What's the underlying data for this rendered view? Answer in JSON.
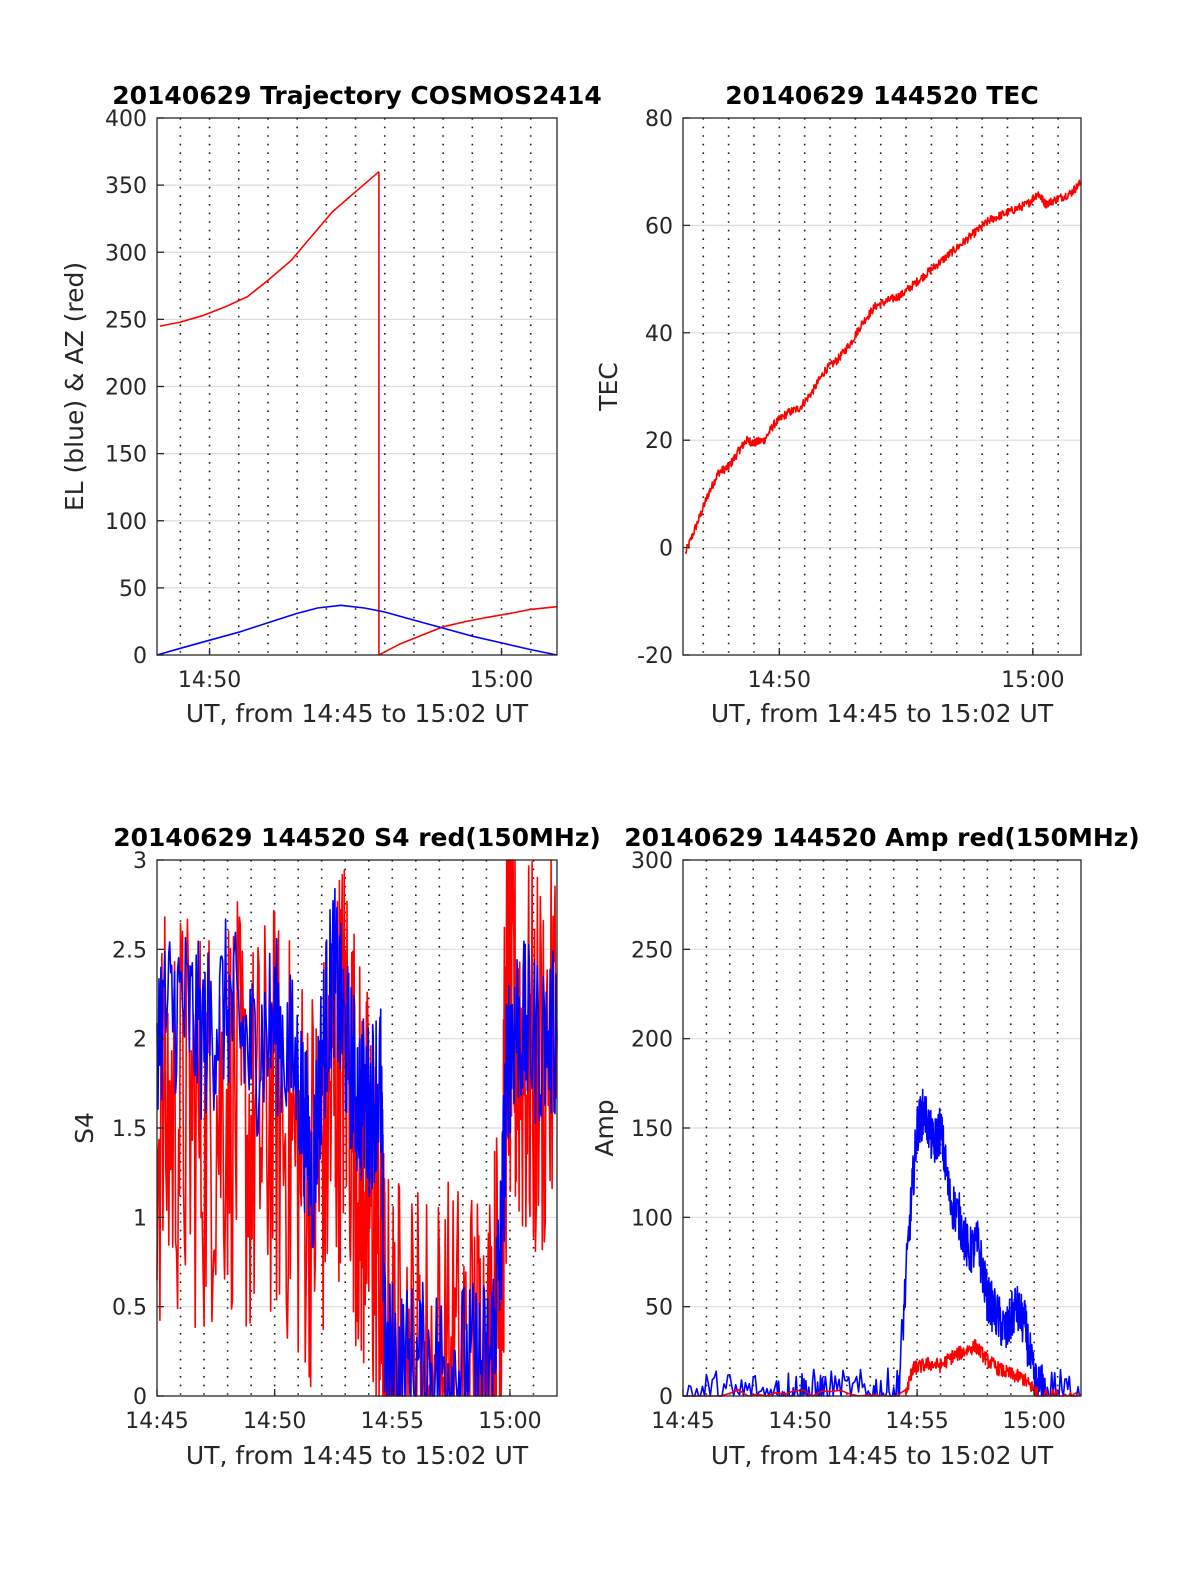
{
  "chart_data": [
    {
      "type": "line",
      "title": "20140629 Trajectory COSMOS2414",
      "xlabel": "UT, from 14:45 to 15:02 UT",
      "ylabel": "EL (blue) & AZ (red)",
      "xlim": [
        48.2,
        61.9
      ],
      "ylim": [
        0,
        400
      ],
      "xticks": [
        {
          "v": 50,
          "label": "14:50"
        },
        {
          "v": 60,
          "label": "15:00"
        }
      ],
      "yticks": [
        {
          "v": 0,
          "label": "0"
        },
        {
          "v": 50,
          "label": "50"
        },
        {
          "v": 100,
          "label": "100"
        },
        {
          "v": 150,
          "label": "150"
        },
        {
          "v": 200,
          "label": "200"
        },
        {
          "v": 250,
          "label": "250"
        },
        {
          "v": 300,
          "label": "300"
        },
        {
          "v": 350,
          "label": "350"
        },
        {
          "v": 400,
          "label": "400"
        }
      ],
      "minute_grid": true,
      "series": [
        {
          "color": "#ff0000",
          "x": [
            48.3,
            49.0,
            49.8,
            50.5,
            51.3,
            52.0,
            52.8,
            53.5,
            54.2,
            55.0,
            55.8
          ],
          "y": [
            245,
            248,
            253,
            259,
            267,
            279,
            294,
            312,
            330,
            345,
            360
          ]
        },
        {
          "color": "#ff0000",
          "x": [
            55.8,
            55.8
          ],
          "y": [
            360,
            0
          ]
        },
        {
          "color": "#ff0000",
          "x": [
            55.8,
            56.5,
            57.3,
            58.0,
            58.8,
            59.5,
            60.3,
            61.0,
            61.9
          ],
          "y": [
            0,
            8,
            15,
            21,
            25,
            28,
            31,
            34,
            36
          ]
        },
        {
          "color": "#0000ff",
          "x": [
            48.2,
            49.0,
            50.0,
            51.0,
            52.0,
            53.0,
            53.7,
            54.5,
            55.3,
            56.0,
            57.0,
            58.0,
            59.0,
            60.0,
            61.0,
            61.9
          ],
          "y": [
            0,
            5,
            11,
            17,
            24,
            31,
            35,
            37,
            35,
            32,
            26,
            20,
            14,
            9,
            4,
            0
          ]
        }
      ]
    },
    {
      "type": "line",
      "title": "20140629 144520 TEC",
      "xlabel": "UT, from 14:45 to 15:02 UT",
      "ylabel": "TEC",
      "xlim": [
        46.2,
        61.9
      ],
      "ylim": [
        -20,
        80
      ],
      "xticks": [
        {
          "v": 50,
          "label": "14:50"
        },
        {
          "v": 60,
          "label": "15:00"
        }
      ],
      "yticks": [
        {
          "v": -20,
          "label": "-20"
        },
        {
          "v": 0,
          "label": "0"
        },
        {
          "v": 20,
          "label": "20"
        },
        {
          "v": 40,
          "label": "40"
        },
        {
          "v": 60,
          "label": "60"
        },
        {
          "v": 80,
          "label": "80"
        }
      ],
      "minute_grid": true,
      "series": [
        {
          "color": "#ff0000",
          "noise": 0.8,
          "x": [
            46.3,
            46.8,
            47.2,
            47.6,
            48.0,
            48.4,
            48.7,
            49.0,
            49.4,
            49.8,
            50.3,
            50.8,
            51.3,
            51.8,
            52.3,
            52.8,
            53.3,
            53.8,
            54.3,
            54.8,
            55.3,
            55.8,
            56.3,
            56.8,
            57.3,
            57.8,
            58.3,
            58.8,
            59.3,
            59.8,
            60.2,
            60.5,
            61.0,
            61.5,
            61.9
          ],
          "y": [
            -1,
            5,
            10,
            14,
            15,
            18,
            20,
            19.5,
            20,
            23,
            25,
            26,
            29,
            33,
            35,
            38,
            42,
            45,
            46,
            47,
            49,
            51,
            53,
            55,
            57,
            59,
            61,
            62,
            63,
            64,
            66,
            64,
            65,
            66,
            68
          ]
        }
      ]
    },
    {
      "type": "line",
      "title": "20140629 144520 S4 red(150MHz)",
      "xlabel": "UT, from 14:45 to 15:02 UT",
      "ylabel": "S4",
      "xlim": [
        45,
        62
      ],
      "ylim": [
        0,
        3
      ],
      "xticks": [
        {
          "v": 45,
          "label": "14:45"
        },
        {
          "v": 50,
          "label": "14:50"
        },
        {
          "v": 55,
          "label": "14:55"
        },
        {
          "v": 60,
          "label": "15:00"
        }
      ],
      "yticks": [
        {
          "v": 0,
          "label": "0"
        },
        {
          "v": 0.5,
          "label": "0.5"
        },
        {
          "v": 1,
          "label": "1"
        },
        {
          "v": 1.5,
          "label": "1.5"
        },
        {
          "v": 2,
          "label": "2"
        },
        {
          "v": 2.5,
          "label": "2.5"
        },
        {
          "v": 3,
          "label": "3"
        }
      ],
      "minute_grid": true,
      "series": [
        {
          "color": "#ff0000",
          "noise": 1.2,
          "x": [
            45.0,
            46.0,
            47.0,
            48.0,
            49.0,
            50.0,
            51.0,
            51.8,
            52.5,
            53.0,
            53.6,
            54.0,
            54.5,
            54.7,
            55.5,
            56.5,
            57.5,
            58.5,
            59.2,
            59.6,
            59.9,
            60.3,
            61.0,
            62.0
          ],
          "y": [
            1.5,
            1.6,
            1.5,
            1.7,
            1.4,
            1.6,
            1.3,
            1.2,
            1.7,
            2.0,
            1.3,
            1.1,
            0.8,
            0.1,
            0.08,
            0.06,
            0.07,
            0.09,
            0.12,
            0.6,
            2.2,
            2.0,
            1.8,
            2.0
          ]
        },
        {
          "color": "#0000ff",
          "noise": 0.5,
          "x": [
            45.0,
            46.0,
            47.0,
            48.0,
            49.0,
            50.0,
            51.0,
            51.6,
            52.0,
            52.5,
            53.0,
            53.5,
            54.0,
            54.5,
            54.7,
            55.5,
            56.5,
            57.5,
            58.5,
            59.2,
            59.6,
            59.9,
            60.3,
            61.0,
            62.0
          ],
          "y": [
            2.1,
            2.2,
            2.0,
            2.2,
            1.9,
            2.1,
            1.8,
            1.2,
            1.9,
            2.4,
            2.0,
            1.7,
            1.6,
            1.8,
            0.2,
            0.15,
            0.15,
            0.17,
            0.15,
            0.2,
            0.8,
            1.9,
            2.1,
            2.0,
            2.0
          ]
        }
      ]
    },
    {
      "type": "line",
      "title": "20140629 144520 Amp red(150MHz)",
      "xlabel": "UT, from 14:45 to 15:02 UT",
      "ylabel": "Amp",
      "xlim": [
        45,
        62
      ],
      "ylim": [
        0,
        300
      ],
      "xticks": [
        {
          "v": 45,
          "label": "14:45"
        },
        {
          "v": 50,
          "label": "14:50"
        },
        {
          "v": 55,
          "label": "14:55"
        },
        {
          "v": 60,
          "label": "15:00"
        }
      ],
      "yticks": [
        {
          "v": 0,
          "label": "0"
        },
        {
          "v": 50,
          "label": "50"
        },
        {
          "v": 100,
          "label": "100"
        },
        {
          "v": 150,
          "label": "150"
        },
        {
          "v": 200,
          "label": "200"
        },
        {
          "v": 250,
          "label": "250"
        },
        {
          "v": 300,
          "label": "300"
        }
      ],
      "minute_grid": true,
      "series": [
        {
          "color": "#0000ff",
          "noise": 14,
          "x": [
            45.0,
            47.0,
            49.0,
            50.0,
            51.0,
            53.0,
            54.2,
            54.7,
            55.0,
            55.3,
            55.7,
            56.0,
            56.4,
            56.8,
            57.2,
            57.6,
            58.0,
            58.4,
            58.8,
            59.2,
            59.6,
            60.0,
            60.5,
            62.0
          ],
          "y": [
            1,
            1,
            1,
            2,
            1,
            1,
            2,
            100,
            150,
            160,
            140,
            150,
            110,
            100,
            80,
            85,
            55,
            45,
            35,
            50,
            40,
            8,
            2,
            1
          ]
        },
        {
          "color": "#ff0000",
          "noise": 4,
          "x": [
            45.0,
            54.5,
            54.8,
            55.0,
            55.5,
            56.0,
            56.5,
            57.0,
            57.5,
            58.0,
            58.5,
            59.0,
            59.5,
            59.9,
            60.2,
            62.0
          ],
          "y": [
            0,
            0,
            15,
            16,
            18,
            17,
            22,
            25,
            28,
            20,
            15,
            12,
            10,
            5,
            0,
            0
          ]
        }
      ]
    }
  ]
}
